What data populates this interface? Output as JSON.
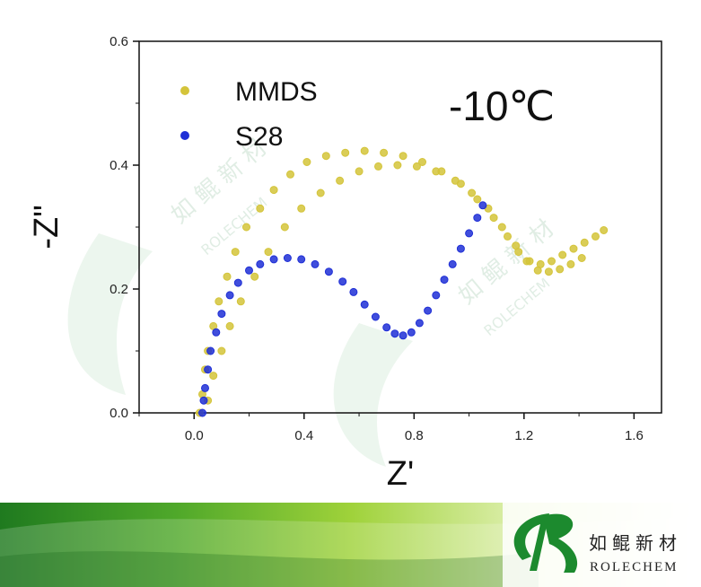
{
  "chart_data": {
    "type": "scatter",
    "title": "",
    "xlabel": "Z'",
    "ylabel": "-Z\"",
    "xlim": [
      -0.2,
      1.7
    ],
    "ylim": [
      0.0,
      0.6
    ],
    "xticks": [
      "0.0",
      "0.4",
      "0.8",
      "1.2",
      "1.6"
    ],
    "yticks": [
      "0.0",
      "0.2",
      "0.4",
      "0.6"
    ],
    "xtick_values": [
      0.0,
      0.4,
      0.8,
      1.2,
      1.6
    ],
    "ytick_values": [
      0.0,
      0.2,
      0.4,
      0.6
    ],
    "annotation": "-10℃",
    "legend_position": "top-left",
    "grid": false,
    "series": [
      {
        "name": "MMDS",
        "color": "#d4c43a",
        "x": [
          0.02,
          0.03,
          0.04,
          0.05,
          0.07,
          0.09,
          0.12,
          0.15,
          0.19,
          0.24,
          0.29,
          0.35,
          0.41,
          0.48,
          0.55,
          0.62,
          0.69,
          0.76,
          0.83,
          0.9,
          0.97,
          1.03,
          1.09,
          1.14,
          1.18,
          1.22,
          1.26,
          1.3,
          1.34,
          1.38,
          1.42,
          1.46,
          1.49,
          0.05,
          0.07,
          0.1,
          0.13,
          0.17,
          0.22,
          0.27,
          0.33,
          0.39,
          0.46,
          0.53,
          0.6,
          0.67,
          0.74,
          0.81,
          0.88,
          0.95,
          1.01,
          1.07,
          1.12,
          1.17,
          1.21,
          1.25,
          1.29,
          1.33,
          1.37,
          1.41
        ],
        "y": [
          0.0,
          0.03,
          0.07,
          0.1,
          0.14,
          0.18,
          0.22,
          0.26,
          0.3,
          0.33,
          0.36,
          0.385,
          0.405,
          0.415,
          0.42,
          0.423,
          0.42,
          0.415,
          0.405,
          0.39,
          0.37,
          0.345,
          0.315,
          0.285,
          0.26,
          0.245,
          0.24,
          0.245,
          0.255,
          0.265,
          0.275,
          0.285,
          0.295,
          0.02,
          0.06,
          0.1,
          0.14,
          0.18,
          0.22,
          0.26,
          0.3,
          0.33,
          0.355,
          0.375,
          0.39,
          0.398,
          0.4,
          0.398,
          0.39,
          0.375,
          0.355,
          0.33,
          0.3,
          0.27,
          0.245,
          0.23,
          0.228,
          0.232,
          0.24,
          0.25
        ]
      },
      {
        "name": "S28",
        "color": "#1f2fd6",
        "x": [
          0.03,
          0.035,
          0.04,
          0.05,
          0.06,
          0.08,
          0.1,
          0.13,
          0.16,
          0.2,
          0.24,
          0.29,
          0.34,
          0.39,
          0.44,
          0.49,
          0.54,
          0.58,
          0.62,
          0.66,
          0.7,
          0.73,
          0.76,
          0.79,
          0.82,
          0.85,
          0.88,
          0.91,
          0.94,
          0.97,
          1.0,
          1.03,
          1.05
        ],
        "y": [
          0.0,
          0.02,
          0.04,
          0.07,
          0.1,
          0.13,
          0.16,
          0.19,
          0.21,
          0.23,
          0.24,
          0.248,
          0.25,
          0.248,
          0.24,
          0.228,
          0.212,
          0.195,
          0.175,
          0.155,
          0.138,
          0.128,
          0.125,
          0.13,
          0.145,
          0.165,
          0.19,
          0.215,
          0.24,
          0.265,
          0.29,
          0.315,
          0.335
        ]
      }
    ]
  },
  "logo": {
    "cn": "如鲲新材",
    "en": "ROLECHEM"
  }
}
